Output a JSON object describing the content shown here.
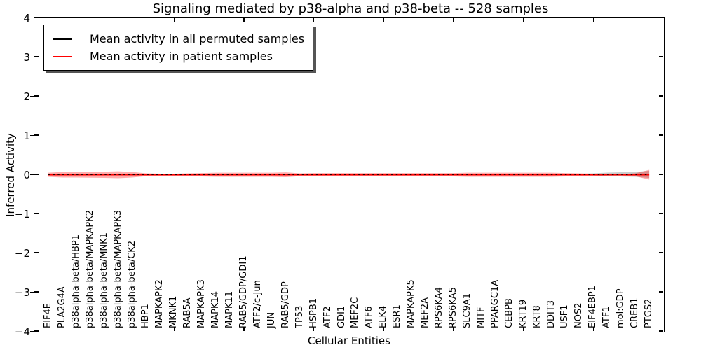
{
  "chart_data": {
    "type": "line",
    "title": "Signaling mediated by p38-alpha and p38-beta -- 528 samples",
    "xlabel": "Cellular Entities",
    "ylabel": "Inferred Activity",
    "xlim": [
      0,
      45
    ],
    "ylim": [
      -4,
      4
    ],
    "grid": false,
    "legend_position": "upper left",
    "yticks": [
      4,
      3,
      2,
      1,
      0,
      -1,
      -2,
      -3,
      -4
    ],
    "ytick_labels": [
      "4",
      "3",
      "2",
      "1",
      "0",
      "−1",
      "−2",
      "−3",
      "−4"
    ],
    "xticks": [
      5,
      10,
      15,
      20,
      25,
      30,
      35,
      40
    ],
    "categories": [
      "EIF4E",
      "PLA2G4A",
      "p38alpha-beta/HBP1",
      "p38alpha-beta/MAPKAPK2",
      "p38alpha-beta/MNK1",
      "p38alpha-beta/MAPKAPK3",
      "p38alpha-beta/CK2",
      "HBP1",
      "MAPKAPK2",
      "MKNK1",
      "RAB5A",
      "MAPKAPK3",
      "MAPK14",
      "MAPK11",
      "RAB5/GDP/GDI1",
      "ATF2/c-Jun",
      "JUN",
      "RAB5/GDP",
      "TP53",
      "HSPB1",
      "ATF2",
      "GDI1",
      "MEF2C",
      "ATF6",
      "ELK4",
      "ESR1",
      "MAPKAPK5",
      "MEF2A",
      "RPS6KA4",
      "RPS6KA5",
      "SLC9A1",
      "MITF",
      "PPARGC1A",
      "CEBPB",
      "KRT19",
      "KRT8",
      "DDIT3",
      "USF1",
      "NOS2",
      "EIF4EBP1",
      "ATF1",
      "mol:GDP",
      "CREB1",
      "PTGS2"
    ],
    "series": [
      {
        "name": "Mean activity in all permuted samples",
        "color": "#000000",
        "style": "dashed",
        "values": [
          0,
          0,
          0,
          0,
          0,
          0,
          0,
          0,
          0,
          0,
          0,
          0,
          0,
          0,
          0,
          0,
          0,
          0,
          0,
          0,
          0,
          0,
          0,
          0,
          0,
          0,
          0,
          0,
          0,
          0,
          0,
          0,
          0,
          0,
          0,
          0,
          0,
          0,
          0,
          0,
          0,
          0,
          0,
          0
        ],
        "band": [
          0.013,
          0.013,
          0.013,
          0.013,
          0.013,
          0.013,
          0.013,
          0.013,
          0.013,
          0.013,
          0.013,
          0.013,
          0.013,
          0.013,
          0.013,
          0.013,
          0.013,
          0.013,
          0.013,
          0.013,
          0.013,
          0.013,
          0.013,
          0.013,
          0.013,
          0.013,
          0.013,
          0.013,
          0.013,
          0.013,
          0.013,
          0.013,
          0.013,
          0.013,
          0.013,
          0.013,
          0.013,
          0.013,
          0.013,
          0.027,
          0.044,
          0.053,
          0.062,
          0.089
        ]
      },
      {
        "name": "Mean activity in patient samples",
        "color": "#ff0000",
        "style": "solid",
        "values": [
          -0.01,
          -0.01,
          -0.01,
          -0.01,
          -0.01,
          -0.01,
          -0.01,
          -0.01,
          -0.01,
          -0.01,
          -0.01,
          -0.01,
          -0.01,
          -0.01,
          -0.01,
          -0.01,
          -0.01,
          -0.01,
          -0.01,
          -0.01,
          -0.01,
          -0.01,
          -0.01,
          -0.01,
          -0.01,
          -0.01,
          -0.01,
          -0.01,
          -0.01,
          -0.01,
          -0.01,
          -0.01,
          -0.01,
          -0.01,
          -0.01,
          -0.01,
          -0.01,
          -0.01,
          -0.01,
          -0.01,
          -0.01,
          -0.01,
          -0.01,
          -0.01
        ],
        "band": [
          0.053,
          0.071,
          0.071,
          0.075,
          0.08,
          0.089,
          0.071,
          0.036,
          0.027,
          0.027,
          0.036,
          0.044,
          0.053,
          0.053,
          0.053,
          0.053,
          0.053,
          0.062,
          0.036,
          0.044,
          0.044,
          0.044,
          0.044,
          0.044,
          0.044,
          0.044,
          0.044,
          0.044,
          0.044,
          0.044,
          0.053,
          0.053,
          0.053,
          0.053,
          0.053,
          0.053,
          0.053,
          0.044,
          0.036,
          0.027,
          0.022,
          0.018,
          0.036,
          0.124
        ]
      }
    ],
    "band_colors": {
      "permuted": "rgba(128,128,128,0.40)",
      "patient": "rgba(255,0,0,0.32)"
    }
  }
}
